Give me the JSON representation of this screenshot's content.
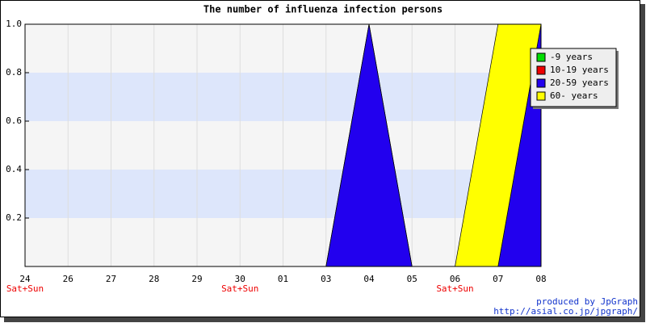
{
  "chart_data": {
    "type": "area",
    "stacked": true,
    "title": "The number of influenza infection persons",
    "categories": [
      "24",
      "26",
      "27",
      "28",
      "29",
      "30",
      "01",
      "03",
      "04",
      "05",
      "06",
      "07",
      "08"
    ],
    "sublabels": [
      "Sat+Sun",
      null,
      null,
      null,
      null,
      "Sat+Sun",
      null,
      null,
      null,
      null,
      "Sat+Sun",
      null,
      null
    ],
    "series": [
      {
        "name": "-9 years",
        "color": "#00dd00",
        "values": [
          0,
          0,
          0,
          0,
          0,
          0,
          0,
          0,
          0,
          0,
          0,
          0,
          0
        ]
      },
      {
        "name": "10-19 years",
        "color": "#ee0000",
        "values": [
          0,
          0,
          0,
          0,
          0,
          0,
          0,
          0,
          0,
          0,
          0,
          0,
          0
        ]
      },
      {
        "name": "20-59 years",
        "color": "#2200ee",
        "values": [
          0,
          0,
          0,
          0,
          0,
          0,
          0,
          0,
          1,
          0,
          0,
          0,
          1
        ]
      },
      {
        "name": "60- years",
        "color": "#ffff00",
        "values": [
          0,
          0,
          0,
          0,
          0,
          0,
          0,
          0,
          0,
          0,
          0,
          1,
          0
        ]
      }
    ],
    "ylim": [
      0,
      1
    ],
    "yticks": [
      {
        "value": 0.2,
        "label": "0.2"
      },
      {
        "value": 0.4,
        "label": "0.4"
      },
      {
        "value": 0.6,
        "label": "0.6"
      },
      {
        "value": 0.8,
        "label": "0.8"
      },
      {
        "value": 1,
        "label": "1.0"
      }
    ],
    "grid": true,
    "legend_position": "top-right",
    "credits": [
      "produced by JpGraph",
      "http://asial.co.jp/jpgraph/"
    ]
  }
}
